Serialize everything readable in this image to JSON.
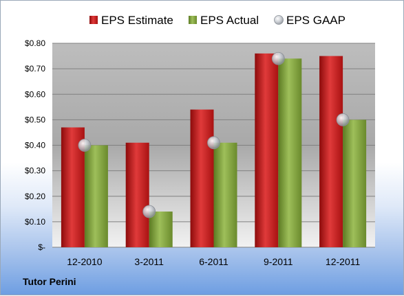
{
  "footer": {
    "company": "Tutor Perini"
  },
  "chart_data": {
    "type": "bar",
    "categories": [
      "12-2010",
      "3-2011",
      "6-2011",
      "9-2011",
      "12-2011"
    ],
    "series": [
      {
        "name": "EPS Estimate",
        "kind": "bar",
        "color": "#cc1a1a",
        "values": [
          0.47,
          0.41,
          0.54,
          0.76,
          0.75
        ]
      },
      {
        "name": "EPS Actual",
        "kind": "bar",
        "color": "#7a9a3a",
        "values": [
          0.4,
          0.14,
          0.41,
          0.74,
          0.5
        ]
      },
      {
        "name": "EPS GAAP",
        "kind": "marker",
        "color": "#b8bcc4",
        "values": [
          0.4,
          0.14,
          0.41,
          0.74,
          0.5
        ]
      }
    ],
    "ylim": [
      0,
      0.8
    ],
    "yticks": [
      {
        "value": 0.0,
        "label": "$-"
      },
      {
        "value": 0.1,
        "label": "$0.10"
      },
      {
        "value": 0.2,
        "label": "$0.20"
      },
      {
        "value": 0.3,
        "label": "$0.30"
      },
      {
        "value": 0.4,
        "label": "$0.40"
      },
      {
        "value": 0.5,
        "label": "$0.50"
      },
      {
        "value": 0.6,
        "label": "$0.60"
      },
      {
        "value": 0.7,
        "label": "$0.70"
      },
      {
        "value": 0.8,
        "label": "$0.80"
      }
    ],
    "grid": true,
    "legend_position": "top"
  }
}
